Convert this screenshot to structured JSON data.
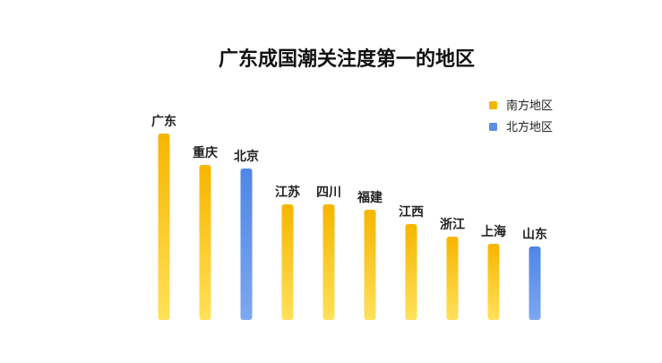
{
  "chart_data": {
    "type": "bar",
    "title": "广东成国潮关注度第一的地区",
    "xlabel": "",
    "ylabel": "",
    "axes_visible": false,
    "grid": false,
    "legend_position": "top-right",
    "categories": [
      "广东",
      "重庆",
      "北京",
      "江苏",
      "四川",
      "福建",
      "江西",
      "浙江",
      "上海",
      "山东"
    ],
    "values": [
      208,
      173,
      169,
      129,
      129,
      123,
      107,
      93,
      85,
      82
    ],
    "value_note": "relative heights estimated from bar lengths (no numeric axis shown)",
    "bar_group": [
      "south",
      "south",
      "north",
      "south",
      "south",
      "south",
      "south",
      "south",
      "south",
      "north"
    ],
    "legend": [
      {
        "key": "south",
        "label": "南方地区",
        "color": "#F6B400"
      },
      {
        "key": "north",
        "label": "北方地区",
        "color": "#5B8EE6"
      }
    ],
    "gradients": {
      "south": {
        "top": "#F7B500",
        "bottom": "#FFE15A"
      },
      "north": {
        "top": "#4F86E8",
        "bottom": "#7DA7F0"
      }
    }
  }
}
